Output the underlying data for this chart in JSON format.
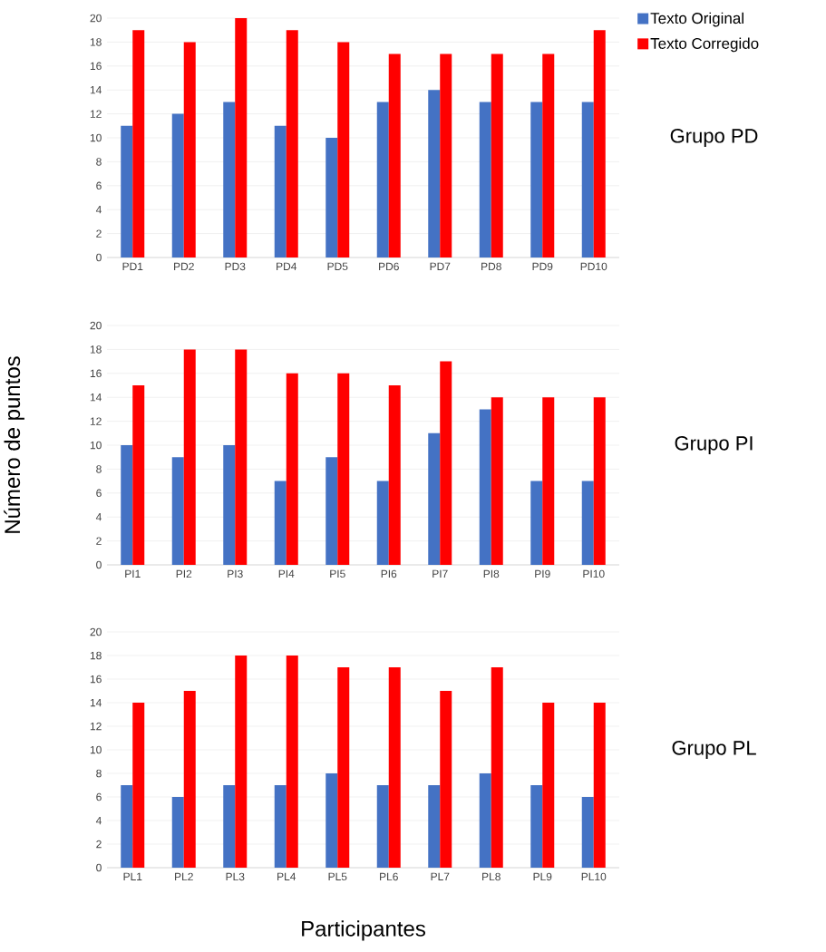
{
  "chart_data": [
    {
      "type": "bar",
      "annotations": [
        "Grupo PD"
      ],
      "categories": [
        "PD1",
        "PD2",
        "PD3",
        "PD4",
        "PD5",
        "PD6",
        "PD7",
        "PD8",
        "PD9",
        "PD10"
      ],
      "series": [
        {
          "name": "Texto Original",
          "color": "#4472c4",
          "values": [
            11,
            12,
            13,
            11,
            10,
            13,
            14,
            13,
            13,
            13
          ]
        },
        {
          "name": "Texto Corregido",
          "color": "#ff0000",
          "values": [
            19,
            18,
            20,
            19,
            18,
            17,
            17,
            17,
            17,
            19
          ]
        }
      ],
      "ylim": [
        0,
        20
      ],
      "yticks": [
        0,
        2,
        4,
        6,
        8,
        10,
        12,
        14,
        16,
        18,
        20
      ],
      "grid": "y",
      "legend": "top right"
    },
    {
      "type": "bar",
      "annotations": [
        "Grupo PI"
      ],
      "ylabel": "Número de puntos",
      "categories": [
        "PI1",
        "PI2",
        "PI3",
        "PI4",
        "PI5",
        "PI6",
        "PI7",
        "PI8",
        "PI9",
        "PI10"
      ],
      "series": [
        {
          "color": "#4472c4",
          "values": [
            10,
            9,
            10,
            7,
            9,
            7,
            11,
            13,
            7,
            7
          ]
        },
        {
          "color": "#ff0000",
          "values": [
            15,
            18,
            18,
            16,
            16,
            15,
            17,
            14,
            14,
            14
          ]
        }
      ],
      "ylim": [
        0,
        20
      ],
      "yticks": [
        0,
        2,
        4,
        6,
        8,
        10,
        12,
        14,
        16,
        18,
        20
      ],
      "grid": "y"
    },
    {
      "type": "bar",
      "annotations": [
        "Grupo PL"
      ],
      "xlabel": "Participantes",
      "categories": [
        "PL1",
        "PL2",
        "PL3",
        "PL4",
        "PL5",
        "PL6",
        "PL7",
        "PL8",
        "PL9",
        "PL10"
      ],
      "series": [
        {
          "color": "#4472c4",
          "values": [
            7,
            6,
            7,
            7,
            8,
            7,
            7,
            8,
            7,
            6
          ]
        },
        {
          "color": "#ff0000",
          "values": [
            14,
            15,
            18,
            18,
            17,
            17,
            15,
            17,
            14,
            14
          ]
        }
      ],
      "ylim": [
        0,
        20
      ],
      "yticks": [
        0,
        2,
        4,
        6,
        8,
        10,
        12,
        14,
        16,
        18,
        20
      ],
      "grid": "y"
    }
  ]
}
